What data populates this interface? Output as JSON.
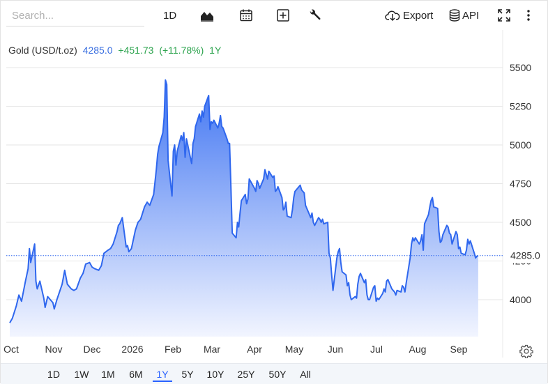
{
  "toolbar": {
    "search_placeholder": "Search...",
    "interval_label": "1D",
    "export_label": "Export",
    "api_label": "API"
  },
  "legend": {
    "name": "Gold (USD/t.oz)",
    "value": "4285.0",
    "change": "+451.73",
    "percent": "(+11.78%)",
    "period": "1Y"
  },
  "periods": [
    "1D",
    "1W",
    "1M",
    "6M",
    "1Y",
    "5Y",
    "10Y",
    "25Y",
    "50Y",
    "All"
  ],
  "active_period": "1Y",
  "colors": {
    "line": "#2f67ee",
    "fill_top": "#3f74f2",
    "fill_bottom": "#f2f5ff",
    "price_label_bg": "#ffffff",
    "positive": "#2ea44f",
    "value_blue": "#3a6fe0",
    "grid": "#e6e6e6",
    "active_period": "#2962ff"
  },
  "chart_data": {
    "type": "area",
    "title": "Gold (USD/t.oz)",
    "xlabel": "",
    "ylabel": "",
    "x_tick_labels": [
      "Oct",
      "Nov",
      "Dec",
      "2026",
      "Feb",
      "Mar",
      "Apr",
      "May",
      "Jun",
      "Jul",
      "Aug",
      "Sep"
    ],
    "y_ticks": [
      4000,
      4250,
      4500,
      4750,
      5000,
      5250,
      5500
    ],
    "ylim": [
      3800,
      5620
    ],
    "last_price": 4285.0,
    "last_price_label": "4285.0",
    "grid": true,
    "series": [
      {
        "points": [
          [
            "Oct 1",
            3850
          ],
          [
            "Oct 3",
            3880
          ],
          [
            "Oct 6",
            3960
          ],
          [
            "Oct 8",
            4030
          ],
          [
            "Oct 10",
            3990
          ],
          [
            "Oct 13",
            4120
          ],
          [
            "Oct 15",
            4200
          ],
          [
            "Oct 16",
            4330
          ],
          [
            "Oct 17",
            4240
          ],
          [
            "Oct 20",
            4360
          ],
          [
            "Oct 21",
            4120
          ],
          [
            "Oct 22",
            4070
          ],
          [
            "Oct 24",
            4120
          ],
          [
            "Oct 27",
            4010
          ],
          [
            "Oct 28",
            3950
          ],
          [
            "Oct 30",
            4020
          ],
          [
            "Nov 3",
            3980
          ],
          [
            "Nov 4",
            3940
          ],
          [
            "Nov 6",
            4000
          ],
          [
            "Nov 10",
            4100
          ],
          [
            "Nov 12",
            4190
          ],
          [
            "Nov 14",
            4100
          ],
          [
            "Nov 17",
            4070
          ],
          [
            "Nov 19",
            4060
          ],
          [
            "Nov 21",
            4070
          ],
          [
            "Nov 24",
            4140
          ],
          [
            "Nov 26",
            4170
          ],
          [
            "Nov 28",
            4230
          ],
          [
            "Dec 1",
            4240
          ],
          [
            "Dec 3",
            4210
          ],
          [
            "Dec 5",
            4200
          ],
          [
            "Dec 8",
            4190
          ],
          [
            "Dec 10",
            4220
          ],
          [
            "Dec 12",
            4300
          ],
          [
            "Dec 15",
            4320
          ],
          [
            "Dec 17",
            4330
          ],
          [
            "Dec 19",
            4360
          ],
          [
            "Dec 22",
            4440
          ],
          [
            "Dec 23",
            4480
          ],
          [
            "Dec 24",
            4490
          ],
          [
            "Dec 26",
            4530
          ],
          [
            "Dec 29",
            4340
          ],
          [
            "Dec 30",
            4350
          ],
          [
            "Dec 31",
            4310
          ],
          [
            "Jan 2",
            4330
          ],
          [
            "Jan 5",
            4450
          ],
          [
            "Jan 7",
            4500
          ],
          [
            "Jan 9",
            4520
          ],
          [
            "Jan 12",
            4600
          ],
          [
            "Jan 14",
            4630
          ],
          [
            "Jan 16",
            4610
          ],
          [
            "Jan 19",
            4680
          ],
          [
            "Jan 20",
            4760
          ],
          [
            "Jan 21",
            4840
          ],
          [
            "Jan 22",
            4940
          ],
          [
            "Jan 23",
            4990
          ],
          [
            "Jan 26",
            5080
          ],
          [
            "Jan 27",
            5180
          ],
          [
            "Jan 28",
            5420
          ],
          [
            "Jan 29",
            5390
          ],
          [
            "Jan 30",
            4900
          ],
          [
            "Feb 2",
            4670
          ],
          [
            "Feb 3",
            4960
          ],
          [
            "Feb 4",
            5000
          ],
          [
            "Feb 5",
            4870
          ],
          [
            "Feb 6",
            4960
          ],
          [
            "Feb 9",
            5060
          ],
          [
            "Feb 10",
            5030
          ],
          [
            "Feb 11",
            5080
          ],
          [
            "Feb 12",
            4920
          ],
          [
            "Feb 13",
            5040
          ],
          [
            "Feb 16",
            4920
          ],
          [
            "Feb 17",
            4880
          ],
          [
            "Feb 18",
            5010
          ],
          [
            "Feb 19",
            5040
          ],
          [
            "Feb 20",
            5120
          ],
          [
            "Feb 23",
            5200
          ],
          [
            "Feb 24",
            5150
          ],
          [
            "Feb 25",
            5220
          ],
          [
            "Feb 26",
            5180
          ],
          [
            "Feb 27",
            5250
          ],
          [
            "Mar 2",
            5320
          ],
          [
            "Mar 3",
            5100
          ],
          [
            "Mar 4",
            5150
          ],
          [
            "Mar 5",
            5140
          ],
          [
            "Mar 6",
            5160
          ],
          [
            "Mar 9",
            5110
          ],
          [
            "Mar 10",
            5140
          ],
          [
            "Mar 11",
            5190
          ],
          [
            "Mar 12",
            5120
          ],
          [
            "Mar 13",
            5110
          ],
          [
            "Mar 16",
            5040
          ],
          [
            "Mar 17",
            5010
          ],
          [
            "Mar 18",
            5010
          ],
          [
            "Mar 19",
            4730
          ],
          [
            "Mar 20",
            4430
          ],
          [
            "Mar 23",
            4400
          ],
          [
            "Mar 24",
            4500
          ],
          [
            "Mar 25",
            4470
          ],
          [
            "Mar 26",
            4560
          ],
          [
            "Mar 27",
            4640
          ],
          [
            "Mar 30",
            4680
          ],
          [
            "Mar 31",
            4620
          ],
          [
            "Apr 1",
            4650
          ],
          [
            "Apr 2",
            4780
          ],
          [
            "Apr 6",
            4720
          ],
          [
            "Apr 7",
            4700
          ],
          [
            "Apr 8",
            4770
          ],
          [
            "Apr 9",
            4750
          ],
          [
            "Apr 10",
            4720
          ],
          [
            "Apr 13",
            4780
          ],
          [
            "Apr 14",
            4840
          ],
          [
            "Apr 15",
            4810
          ],
          [
            "Apr 16",
            4780
          ],
          [
            "Apr 17",
            4830
          ],
          [
            "Apr 20",
            4790
          ],
          [
            "Apr 21",
            4800
          ],
          [
            "Apr 22",
            4700
          ],
          [
            "Apr 23",
            4710
          ],
          [
            "Apr 24",
            4730
          ],
          [
            "Apr 27",
            4660
          ],
          [
            "Apr 28",
            4580
          ],
          [
            "Apr 29",
            4590
          ],
          [
            "Apr 30",
            4630
          ],
          [
            "May 1",
            4540
          ],
          [
            "May 4",
            4530
          ],
          [
            "May 5",
            4580
          ],
          [
            "May 6",
            4660
          ],
          [
            "May 7",
            4700
          ],
          [
            "May 8",
            4710
          ],
          [
            "May 11",
            4740
          ],
          [
            "May 12",
            4710
          ],
          [
            "May 13",
            4700
          ],
          [
            "May 14",
            4690
          ],
          [
            "May 15",
            4610
          ],
          [
            "May 18",
            4550
          ],
          [
            "May 19",
            4530
          ],
          [
            "May 20",
            4560
          ],
          [
            "May 21",
            4500
          ],
          [
            "May 22",
            4480
          ],
          [
            "May 25",
            4530
          ],
          [
            "May 26",
            4520
          ],
          [
            "May 27",
            4500
          ],
          [
            "May 28",
            4520
          ],
          [
            "May 29",
            4490
          ],
          [
            "Jun 1",
            4500
          ],
          [
            "Jun 2",
            4300
          ],
          [
            "Jun 3",
            4270
          ],
          [
            "Jun 4",
            4160
          ],
          [
            "Jun 5",
            4060
          ],
          [
            "Jun 8",
            4270
          ],
          [
            "Jun 9",
            4310
          ],
          [
            "Jun 10",
            4330
          ],
          [
            "Jun 11",
            4240
          ],
          [
            "Jun 12",
            4180
          ],
          [
            "Jun 15",
            4160
          ],
          [
            "Jun 16",
            4090
          ],
          [
            "Jun 17",
            4110
          ],
          [
            "Jun 18",
            4030
          ],
          [
            "Jun 19",
            4000
          ],
          [
            "Jun 22",
            4020
          ],
          [
            "Jun 23",
            4010
          ],
          [
            "Jun 24",
            4100
          ],
          [
            "Jun 25",
            4150
          ],
          [
            "Jun 26",
            4170
          ],
          [
            "Jun 29",
            4110
          ],
          [
            "Jun 30",
            4130
          ],
          [
            "Jul 1",
            4030
          ],
          [
            "Jul 2",
            4000
          ],
          [
            "Jul 3",
            4000
          ],
          [
            "Jul 6",
            4080
          ],
          [
            "Jul 7",
            4090
          ],
          [
            "Jul 8",
            3990
          ],
          [
            "Jul 9",
            4010
          ],
          [
            "Jul 10",
            4000
          ],
          [
            "Jul 13",
            4040
          ],
          [
            "Jul 14",
            4070
          ],
          [
            "Jul 15",
            4050
          ],
          [
            "Jul 16",
            4120
          ],
          [
            "Jul 17",
            4130
          ],
          [
            "Jul 20",
            4070
          ],
          [
            "Jul 21",
            4060
          ],
          [
            "Jul 22",
            4050
          ],
          [
            "Jul 23",
            4030
          ],
          [
            "Jul 24",
            4060
          ],
          [
            "Jul 27",
            4050
          ],
          [
            "Jul 28",
            4090
          ],
          [
            "Jul 29",
            4080
          ],
          [
            "Jul 30",
            4050
          ],
          [
            "Jul 31",
            4110
          ],
          [
            "Aug 3",
            4270
          ],
          [
            "Aug 4",
            4360
          ],
          [
            "Aug 5",
            4400
          ],
          [
            "Aug 6",
            4380
          ],
          [
            "Aug 7",
            4400
          ],
          [
            "Aug 10",
            4360
          ],
          [
            "Aug 11",
            4380
          ],
          [
            "Aug 12",
            4420
          ],
          [
            "Aug 13",
            4320
          ],
          [
            "Aug 14",
            4490
          ],
          [
            "Aug 17",
            4550
          ],
          [
            "Aug 18",
            4600
          ],
          [
            "Aug 19",
            4640
          ],
          [
            "Aug 20",
            4660
          ],
          [
            "Aug 21",
            4600
          ],
          [
            "Aug 24",
            4590
          ],
          [
            "Aug 25",
            4440
          ],
          [
            "Aug 26",
            4370
          ],
          [
            "Aug 27",
            4380
          ],
          [
            "Aug 28",
            4420
          ],
          [
            "Aug 31",
            4480
          ],
          [
            "Sep 1",
            4470
          ],
          [
            "Sep 2",
            4430
          ],
          [
            "Sep 3",
            4420
          ],
          [
            "Sep 4",
            4360
          ],
          [
            "Sep 7",
            4440
          ],
          [
            "Sep 8",
            4420
          ],
          [
            "Sep 9",
            4330
          ],
          [
            "Sep 10",
            4340
          ],
          [
            "Sep 11",
            4300
          ],
          [
            "Sep 14",
            4290
          ],
          [
            "Sep 15",
            4320
          ],
          [
            "Sep 16",
            4390
          ],
          [
            "Sep 17",
            4360
          ],
          [
            "Sep 18",
            4380
          ],
          [
            "Sep 21",
            4300
          ],
          [
            "Sep 22",
            4270
          ],
          [
            "Sep 23",
            4280
          ],
          [
            "Sep 24",
            4285
          ]
        ]
      }
    ]
  }
}
